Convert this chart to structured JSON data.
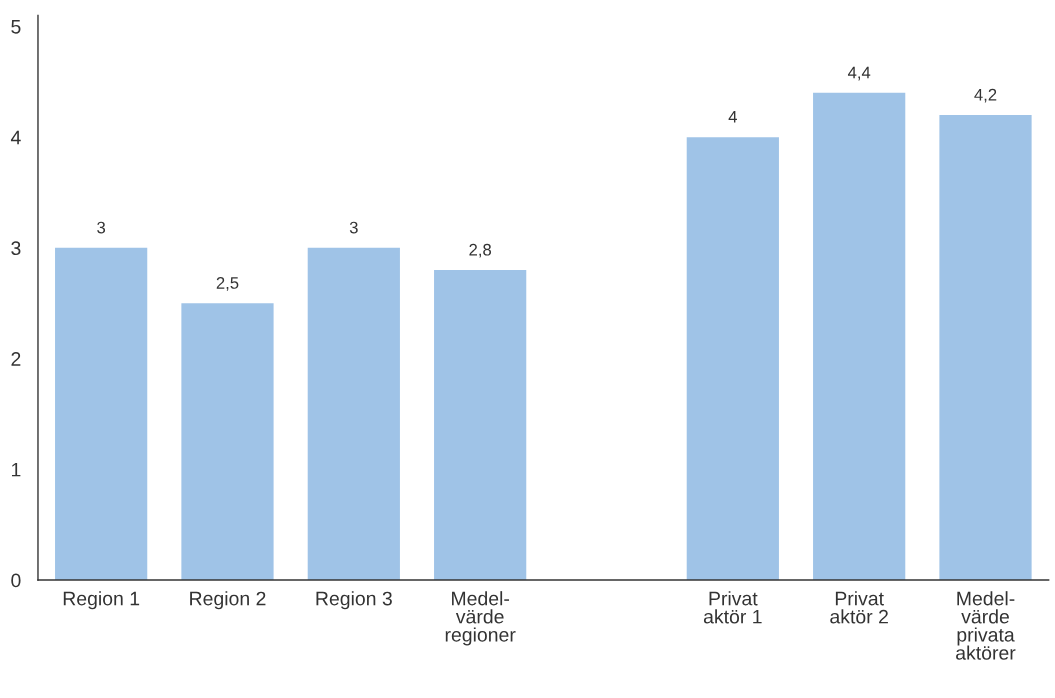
{
  "chart_data": {
    "type": "bar",
    "categories": [
      "Region 1",
      "Region 2",
      "Region 3",
      "Medel-\nvärde\nregioner",
      null,
      "Privat\naktör 1",
      "Privat\naktör 2",
      "Medel-\nvärde\nprivata\naktörer"
    ],
    "values": [
      3,
      2.5,
      3,
      2.8,
      null,
      4,
      4.4,
      4.2
    ],
    "value_labels": [
      "3",
      "2,5",
      "3",
      "2,8",
      null,
      "4",
      "4,4",
      "4,2"
    ],
    "color": "#9fc3e7",
    "ylim": [
      0,
      5.1
    ],
    "yticks": [
      0,
      1,
      2,
      3,
      4,
      5
    ],
    "grid": false,
    "legend": false
  }
}
